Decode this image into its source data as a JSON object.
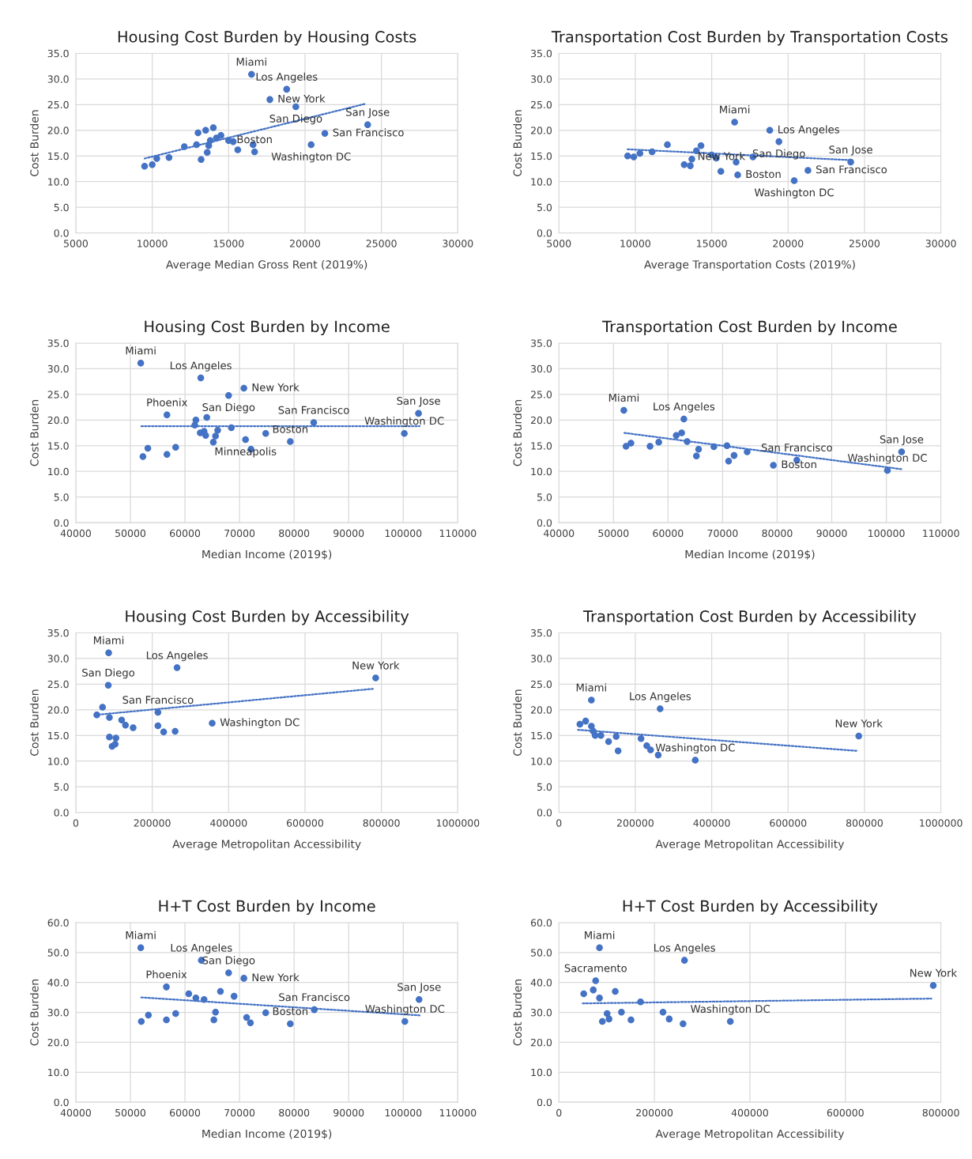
{
  "chart_data": [
    {
      "type": "scatter",
      "title": "Housing Cost Burden by Housing Costs",
      "xlabel": "Average Median Gross Rent (2019%)",
      "ylabel": "Cost Burden",
      "xlim": [
        5000,
        30000
      ],
      "xticks": [
        5000,
        10000,
        15000,
        20000,
        25000,
        30000
      ],
      "ylim": [
        0,
        35
      ],
      "yticks": [
        {
          "value": 0,
          "label": "0.0"
        },
        {
          "value": 5,
          "label": "5.0"
        },
        {
          "value": 10,
          "label": "10.0"
        },
        {
          "value": 15,
          "label": "15.0"
        },
        {
          "value": 20,
          "label": "20.0"
        },
        {
          "value": 25,
          "label": "25.0"
        },
        {
          "value": 30,
          "label": "30.0"
        },
        {
          "value": 35,
          "label": "35.0"
        }
      ],
      "grid": true,
      "series": [
        {
          "marker": "circle",
          "color": "#4472c4",
          "x": [
            9500,
            10000,
            10300,
            11100,
            12100,
            12900,
            13000,
            13200,
            13500,
            13600,
            13700,
            13800,
            14000,
            14200,
            14500,
            15000,
            15300,
            15600,
            16500,
            16600,
            16700,
            17700,
            18800,
            19400,
            20400,
            21300,
            24100
          ],
          "values": [
            13.0,
            13.3,
            14.5,
            14.7,
            16.8,
            17.2,
            19.5,
            14.3,
            20.0,
            15.7,
            17.0,
            18.0,
            20.5,
            18.5,
            19.0,
            18.0,
            17.8,
            16.2,
            30.9,
            17.2,
            15.8,
            26.0,
            28.0,
            24.6,
            17.2,
            19.4,
            21.1
          ]
        },
        {
          "type": "line",
          "color": "#4472c4",
          "line_style": "dotted",
          "x": [
            9500,
            24000
          ],
          "values": [
            14.5,
            25.2
          ]
        }
      ],
      "annotations": [
        {
          "text": "Miami",
          "x": 16500,
          "y": 30.9
        },
        {
          "text": "Los Angeles",
          "x": 18800,
          "y": 28.0
        },
        {
          "text": "New York",
          "x": 17700,
          "y": 26.0
        },
        {
          "text": "San Diego",
          "x": 19400,
          "y": 24.6
        },
        {
          "text": "San Jose",
          "x": 24100,
          "y": 21.1
        },
        {
          "text": "San Francisco",
          "x": 21300,
          "y": 19.4
        },
        {
          "text": "Washington DC",
          "x": 20400,
          "y": 17.2
        },
        {
          "text": "Boston",
          "x": 16700,
          "y": 15.8
        }
      ]
    },
    {
      "type": "scatter",
      "title": "Transportation Cost Burden by Transportation Costs",
      "xlabel": "Average Transportation Costs (2019%)",
      "ylabel": "Cost Burden",
      "xlim": [
        5000,
        30000
      ],
      "xticks": [
        5000,
        10000,
        15000,
        20000,
        25000,
        30000
      ],
      "ylim": [
        0,
        35
      ],
      "yticks": [
        {
          "value": 0,
          "label": "0.0"
        },
        {
          "value": 5,
          "label": "5.0"
        },
        {
          "value": 10,
          "label": "10.0"
        },
        {
          "value": 15,
          "label": "15.0"
        },
        {
          "value": 20,
          "label": "20.0"
        },
        {
          "value": 25,
          "label": "25.0"
        },
        {
          "value": 30,
          "label": "30.0"
        },
        {
          "value": 35,
          "label": "35.0"
        }
      ],
      "grid": true,
      "series": [
        {
          "marker": "circle",
          "color": "#4472c4",
          "x": [
            9500,
            9900,
            10300,
            11100,
            12100,
            13200,
            13600,
            13700,
            14000,
            14300,
            15000,
            15300,
            15600,
            16500,
            16600,
            16700,
            17700,
            18800,
            19400,
            20400,
            21300,
            24100
          ],
          "values": [
            15.0,
            14.8,
            15.5,
            15.8,
            17.2,
            13.3,
            13.1,
            14.4,
            16.0,
            17.0,
            15.2,
            14.6,
            12.0,
            21.6,
            13.8,
            11.3,
            14.8,
            20.0,
            17.8,
            10.2,
            12.2,
            13.8
          ]
        },
        {
          "type": "line",
          "color": "#4472c4",
          "line_style": "dotted",
          "x": [
            9500,
            24000
          ],
          "values": [
            16.3,
            14.2
          ]
        }
      ],
      "annotations": [
        {
          "text": "Miami",
          "x": 16500,
          "y": 21.6
        },
        {
          "text": "Los Angeles",
          "x": 18800,
          "y": 20.0
        },
        {
          "text": "San Diego",
          "x": 19400,
          "y": 17.8
        },
        {
          "text": "San Jose",
          "x": 24100,
          "y": 13.8
        },
        {
          "text": "San Francisco",
          "x": 21300,
          "y": 12.2
        },
        {
          "text": "Washington DC",
          "x": 20400,
          "y": 10.2
        },
        {
          "text": "Boston",
          "x": 16700,
          "y": 11.3
        },
        {
          "text": "New York",
          "x": 17700,
          "y": 14.8
        }
      ]
    },
    {
      "type": "scatter",
      "title": "Housing Cost Burden by Income",
      "xlabel": "Median Income (2019$)",
      "ylabel": "Cost Burden",
      "xlim": [
        40000,
        110000
      ],
      "xticks": [
        40000,
        50000,
        60000,
        70000,
        80000,
        90000,
        100000,
        110000
      ],
      "ylim": [
        0,
        35
      ],
      "yticks": [
        {
          "value": 0,
          "label": "0.0"
        },
        {
          "value": 5,
          "label": "5.0"
        },
        {
          "value": 10,
          "label": "10.0"
        },
        {
          "value": 15,
          "label": "15.0"
        },
        {
          "value": 20,
          "label": "20.0"
        },
        {
          "value": 25,
          "label": "25.0"
        },
        {
          "value": 30,
          "label": "30.0"
        },
        {
          "value": 35,
          "label": "35.0"
        }
      ],
      "grid": true,
      "series": [
        {
          "marker": "circle",
          "color": "#4472c4",
          "x": [
            51900,
            52300,
            53200,
            56700,
            56700,
            58300,
            61800,
            62000,
            62800,
            62900,
            63500,
            63800,
            64000,
            65200,
            65600,
            66000,
            68000,
            68500,
            70800,
            71100,
            72100,
            74800,
            79300,
            83600,
            100200,
            102800
          ],
          "values": [
            31.1,
            12.9,
            14.5,
            13.3,
            21.0,
            14.7,
            19.0,
            20.0,
            17.5,
            28.2,
            17.8,
            17.0,
            20.5,
            15.7,
            16.9,
            18.0,
            24.8,
            18.5,
            26.2,
            16.2,
            14.3,
            17.4,
            15.8,
            19.5,
            17.4,
            21.3
          ]
        },
        {
          "type": "line",
          "color": "#4472c4",
          "line_style": "dotted",
          "x": [
            52000,
            103000
          ],
          "values": [
            18.8,
            18.8
          ]
        }
      ],
      "annotations": [
        {
          "text": "Miami",
          "x": 51900,
          "y": 31.1
        },
        {
          "text": "Los Angeles",
          "x": 62900,
          "y": 28.2
        },
        {
          "text": "New York",
          "x": 70800,
          "y": 26.2
        },
        {
          "text": "San Diego",
          "x": 68000,
          "y": 24.8
        },
        {
          "text": "Phoenix",
          "x": 56700,
          "y": 21.0
        },
        {
          "text": "San Jose",
          "x": 102800,
          "y": 21.3
        },
        {
          "text": "Washington DC",
          "x": 100200,
          "y": 17.4
        },
        {
          "text": "San Francisco",
          "x": 83600,
          "y": 19.5
        },
        {
          "text": "Boston",
          "x": 79300,
          "y": 15.8
        },
        {
          "text": "Minneapolis",
          "x": 71100,
          "y": 16.2
        }
      ]
    },
    {
      "type": "scatter",
      "title": "Transportation Cost Burden by Income",
      "xlabel": "Median Income (2019$)",
      "ylabel": "Cost Burden",
      "xlim": [
        40000,
        110000
      ],
      "xticks": [
        40000,
        50000,
        60000,
        70000,
        80000,
        90000,
        100000,
        110000
      ],
      "ylim": [
        0,
        35
      ],
      "yticks": [
        {
          "value": 0,
          "label": "0.0"
        },
        {
          "value": 5,
          "label": "5.0"
        },
        {
          "value": 10,
          "label": "10.0"
        },
        {
          "value": 15,
          "label": "15.0"
        },
        {
          "value": 20,
          "label": "20.0"
        },
        {
          "value": 25,
          "label": "25.0"
        },
        {
          "value": 30,
          "label": "30.0"
        },
        {
          "value": 35,
          "label": "35.0"
        }
      ],
      "grid": true,
      "series": [
        {
          "marker": "circle",
          "color": "#4472c4",
          "x": [
            51900,
            52300,
            53200,
            56700,
            58300,
            61500,
            62500,
            62900,
            63500,
            65200,
            65600,
            68400,
            70800,
            71100,
            72100,
            74500,
            79300,
            83600,
            100200,
            102800
          ],
          "values": [
            21.9,
            14.9,
            15.5,
            14.9,
            15.7,
            17.0,
            17.5,
            20.2,
            15.8,
            13.0,
            14.3,
            14.8,
            15.0,
            12.0,
            13.1,
            13.8,
            11.2,
            12.2,
            10.2,
            13.8
          ]
        },
        {
          "type": "line",
          "color": "#4472c4",
          "line_style": "dotted",
          "x": [
            52000,
            103000
          ],
          "values": [
            17.5,
            10.4
          ]
        }
      ],
      "annotations": [
        {
          "text": "Miami",
          "x": 51900,
          "y": 21.9
        },
        {
          "text": "Los Angeles",
          "x": 62900,
          "y": 20.2
        },
        {
          "text": "San Jose",
          "x": 102800,
          "y": 13.8
        },
        {
          "text": "Washington DC",
          "x": 100200,
          "y": 10.2
        },
        {
          "text": "San Francisco",
          "x": 83600,
          "y": 12.2
        },
        {
          "text": "Boston",
          "x": 79300,
          "y": 11.2
        }
      ]
    },
    {
      "type": "scatter",
      "title": "Housing Cost Burden by Accessibility",
      "xlabel": "Average Metropolitan Accessibility",
      "ylabel": "Cost Burden",
      "xlim": [
        0,
        1000000
      ],
      "xticks": [
        0,
        200000,
        400000,
        600000,
        800000,
        1000000
      ],
      "ylim": [
        0,
        35
      ],
      "yticks": [
        {
          "value": 0,
          "label": "0.0"
        },
        {
          "value": 5,
          "label": "5.0"
        },
        {
          "value": 10,
          "label": "10.0"
        },
        {
          "value": 15,
          "label": "15.0"
        },
        {
          "value": 20,
          "label": "20.0"
        },
        {
          "value": 25,
          "label": "25.0"
        },
        {
          "value": 30,
          "label": "30.0"
        },
        {
          "value": 35,
          "label": "35.0"
        }
      ],
      "grid": true,
      "series": [
        {
          "marker": "circle",
          "color": "#4472c4",
          "x": [
            86000,
            265000,
            785000,
            85000,
            55000,
            70000,
            88000,
            88000,
            95000,
            103000,
            105000,
            120000,
            130000,
            150000,
            215000,
            215000,
            230000,
            260000,
            357000
          ],
          "values": [
            31.1,
            28.2,
            26.2,
            24.8,
            19.0,
            20.5,
            18.5,
            14.7,
            12.9,
            13.3,
            14.5,
            18.0,
            17.0,
            16.5,
            19.5,
            16.9,
            15.7,
            15.8,
            17.4
          ]
        },
        {
          "type": "line",
          "color": "#4472c4",
          "line_style": "dotted",
          "x": [
            50000,
            780000
          ],
          "values": [
            19.0,
            24.1
          ]
        }
      ],
      "annotations": [
        {
          "text": "Miami",
          "x": 86000,
          "y": 31.1
        },
        {
          "text": "Los Angeles",
          "x": 265000,
          "y": 28.2
        },
        {
          "text": "New York",
          "x": 785000,
          "y": 26.2
        },
        {
          "text": "San Diego",
          "x": 85000,
          "y": 24.8
        },
        {
          "text": "San Francisco",
          "x": 215000,
          "y": 19.5
        },
        {
          "text": "Washington DC",
          "x": 357000,
          "y": 17.4
        }
      ]
    },
    {
      "type": "scatter",
      "title": "Transportation Cost Burden by Accessibility",
      "xlabel": "Average Metropolitan Accessibility",
      "ylabel": "Cost Burden",
      "xlim": [
        0,
        1000000
      ],
      "xticks": [
        0,
        200000,
        400000,
        600000,
        800000,
        1000000
      ],
      "ylim": [
        0,
        35
      ],
      "yticks": [
        {
          "value": 0,
          "label": "0.0"
        },
        {
          "value": 5,
          "label": "5.0"
        },
        {
          "value": 10,
          "label": "10.0"
        },
        {
          "value": 15,
          "label": "15.0"
        },
        {
          "value": 20,
          "label": "20.0"
        },
        {
          "value": 25,
          "label": "25.0"
        },
        {
          "value": 30,
          "label": "30.0"
        },
        {
          "value": 35,
          "label": "35.0"
        }
      ],
      "grid": true,
      "series": [
        {
          "marker": "circle",
          "color": "#4472c4",
          "x": [
            85000,
            265000,
            785000,
            55000,
            70000,
            85000,
            90000,
            95000,
            110000,
            130000,
            150000,
            155000,
            215000,
            230000,
            240000,
            260000,
            357000
          ],
          "values": [
            21.9,
            20.2,
            14.9,
            17.2,
            17.8,
            16.8,
            15.8,
            15.0,
            15.0,
            13.8,
            14.8,
            12.0,
            14.4,
            13.0,
            12.2,
            11.2,
            10.2
          ]
        },
        {
          "type": "line",
          "color": "#4472c4",
          "line_style": "dotted",
          "x": [
            50000,
            780000
          ],
          "values": [
            16.1,
            12.0
          ]
        }
      ],
      "annotations": [
        {
          "text": "Miami",
          "x": 85000,
          "y": 21.9
        },
        {
          "text": "Los Angeles",
          "x": 265000,
          "y": 20.2
        },
        {
          "text": "New York",
          "x": 785000,
          "y": 14.9
        },
        {
          "text": "Washington DC",
          "x": 357000,
          "y": 10.2
        }
      ]
    },
    {
      "type": "scatter",
      "title": "H+T Cost Burden by Income",
      "xlabel": "Median Income (2019$)",
      "ylabel": "Cost Burden",
      "xlim": [
        40000,
        110000
      ],
      "xticks": [
        40000,
        50000,
        60000,
        70000,
        80000,
        90000,
        100000,
        110000
      ],
      "ylim": [
        0,
        60
      ],
      "yticks": [
        {
          "value": 0,
          "label": "0.0"
        },
        {
          "value": 10,
          "label": "10.0"
        },
        {
          "value": 20,
          "label": "20.0"
        },
        {
          "value": 30,
          "label": "30.0"
        },
        {
          "value": 40,
          "label": "40.0"
        },
        {
          "value": 50,
          "label": "50.0"
        },
        {
          "value": 60,
          "label": "60.0"
        }
      ],
      "grid": true,
      "series": [
        {
          "marker": "circle",
          "color": "#4472c4",
          "x": [
            51900,
            63000,
            68000,
            70800,
            53300,
            52000,
            56600,
            58300,
            56600,
            60700,
            62000,
            63500,
            65300,
            65600,
            66500,
            69000,
            71300,
            72000,
            74800,
            79300,
            83700,
            100300,
            102900
          ],
          "values": [
            51.6,
            47.4,
            43.2,
            41.4,
            29.1,
            27.0,
            27.5,
            29.6,
            38.5,
            36.2,
            34.8,
            34.3,
            27.5,
            30.1,
            37.0,
            35.4,
            28.3,
            26.5,
            29.9,
            26.2,
            30.9,
            27.0,
            34.3
          ]
        },
        {
          "type": "line",
          "color": "#4472c4",
          "line_style": "dotted",
          "x": [
            52000,
            103000
          ],
          "values": [
            35.0,
            29.0
          ]
        }
      ],
      "annotations": [
        {
          "text": "Miami",
          "x": 51900,
          "y": 51.6
        },
        {
          "text": "Los Angeles",
          "x": 63000,
          "y": 47.4
        },
        {
          "text": "San Diego",
          "x": 68000,
          "y": 43.2
        },
        {
          "text": "New York",
          "x": 70800,
          "y": 41.4
        },
        {
          "text": "Phoenix",
          "x": 56600,
          "y": 38.5
        },
        {
          "text": "San Jose",
          "x": 102900,
          "y": 34.3
        },
        {
          "text": "Washington DC",
          "x": 100300,
          "y": 27.0
        },
        {
          "text": "San Francisco",
          "x": 83700,
          "y": 30.9
        },
        {
          "text": "Boston",
          "x": 79300,
          "y": 26.2
        }
      ]
    },
    {
      "type": "scatter",
      "title": "H+T Cost Burden by Accessibility",
      "xlabel": "Average Metropolitan Accessibility",
      "ylabel": "Cost Burden",
      "xlim": [
        0,
        800000
      ],
      "xticks": [
        0,
        200000,
        400000,
        600000,
        800000
      ],
      "ylim": [
        0,
        60
      ],
      "yticks": [
        {
          "value": 0,
          "label": "0.0"
        },
        {
          "value": 10,
          "label": "10.0"
        },
        {
          "value": 20,
          "label": "20.0"
        },
        {
          "value": 30,
          "label": "30.0"
        },
        {
          "value": 40,
          "label": "40.0"
        },
        {
          "value": 50,
          "label": "50.0"
        },
        {
          "value": 60,
          "label": "60.0"
        }
      ],
      "grid": true,
      "series": [
        {
          "marker": "circle",
          "color": "#4472c4",
          "x": [
            85000,
            263000,
            784000,
            77000,
            101000,
            91000,
            105000,
            131000,
            151000,
            218000,
            231000,
            260000,
            359000,
            52000,
            72000,
            85000,
            118000,
            171000
          ],
          "values": [
            51.6,
            47.4,
            39.0,
            40.6,
            29.6,
            27.0,
            27.8,
            30.1,
            27.5,
            30.1,
            27.8,
            26.2,
            27.0,
            36.2,
            37.5,
            34.8,
            37.0,
            33.5
          ]
        },
        {
          "type": "line",
          "color": "#4472c4",
          "line_style": "dotted",
          "x": [
            50000,
            780000
          ],
          "values": [
            33.0,
            34.6
          ]
        }
      ],
      "annotations": [
        {
          "text": "Miami",
          "x": 85000,
          "y": 51.6
        },
        {
          "text": "Los Angeles",
          "x": 263000,
          "y": 47.4
        },
        {
          "text": "New York",
          "x": 784000,
          "y": 39.0
        },
        {
          "text": "Sacramento",
          "x": 77000,
          "y": 40.6
        },
        {
          "text": "Washington DC",
          "x": 359000,
          "y": 27.0
        }
      ]
    }
  ]
}
